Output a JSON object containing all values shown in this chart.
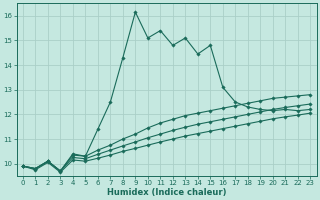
{
  "xlabel": "Humidex (Indice chaleur)",
  "background_color": "#c5e8e0",
  "grid_color": "#aacfc8",
  "line_color": "#1a6b5a",
  "xlim": [
    -0.5,
    23.5
  ],
  "ylim": [
    9.5,
    16.5
  ],
  "xticks": [
    0,
    1,
    2,
    3,
    4,
    5,
    6,
    7,
    8,
    9,
    10,
    11,
    12,
    13,
    14,
    15,
    16,
    17,
    18,
    19,
    20,
    21,
    22,
    23
  ],
  "yticks": [
    10,
    11,
    12,
    13,
    14,
    15,
    16
  ],
  "lines": [
    {
      "x": [
        0,
        1,
        2,
        3,
        4,
        5,
        6,
        7,
        8,
        9,
        10,
        11,
        12,
        13,
        14,
        15,
        16,
        17,
        18,
        19,
        20,
        21,
        22,
        23
      ],
      "y": [
        9.9,
        9.8,
        10.1,
        9.7,
        10.4,
        10.3,
        11.4,
        12.5,
        14.3,
        16.15,
        15.1,
        15.4,
        14.8,
        15.1,
        14.45,
        14.8,
        13.1,
        12.5,
        12.3,
        12.2,
        12.15,
        12.2,
        12.15,
        12.2
      ]
    },
    {
      "x": [
        0,
        1,
        2,
        3,
        4,
        5,
        6,
        7,
        8,
        9,
        10,
        11,
        12,
        13,
        14,
        15,
        16,
        17,
        18,
        19,
        20,
        21,
        22,
        23
      ],
      "y": [
        9.9,
        9.8,
        10.1,
        9.7,
        10.35,
        10.3,
        10.55,
        10.75,
        11.0,
        11.2,
        11.45,
        11.65,
        11.8,
        11.95,
        12.05,
        12.15,
        12.25,
        12.35,
        12.45,
        12.55,
        12.65,
        12.7,
        12.75,
        12.8
      ]
    },
    {
      "x": [
        0,
        1,
        2,
        3,
        4,
        5,
        6,
        7,
        8,
        9,
        10,
        11,
        12,
        13,
        14,
        15,
        16,
        17,
        18,
        19,
        20,
        21,
        22,
        23
      ],
      "y": [
        9.9,
        9.8,
        10.1,
        9.7,
        10.25,
        10.2,
        10.38,
        10.55,
        10.72,
        10.88,
        11.05,
        11.2,
        11.35,
        11.48,
        11.6,
        11.7,
        11.8,
        11.9,
        12.0,
        12.1,
        12.2,
        12.28,
        12.35,
        12.42
      ]
    },
    {
      "x": [
        0,
        1,
        2,
        3,
        4,
        5,
        6,
        7,
        8,
        9,
        10,
        11,
        12,
        13,
        14,
        15,
        16,
        17,
        18,
        19,
        20,
        21,
        22,
        23
      ],
      "y": [
        9.9,
        9.75,
        10.05,
        9.65,
        10.15,
        10.1,
        10.22,
        10.35,
        10.5,
        10.62,
        10.75,
        10.88,
        11.0,
        11.12,
        11.22,
        11.32,
        11.42,
        11.52,
        11.62,
        11.72,
        11.82,
        11.9,
        11.97,
        12.05
      ]
    }
  ]
}
